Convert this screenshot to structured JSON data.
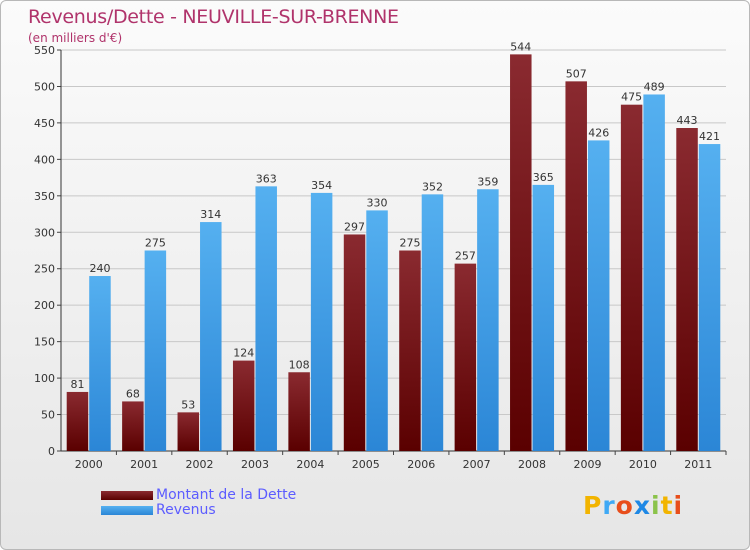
{
  "title": "Revenus/Dette - NEUVILLE-SUR-BRENNE",
  "subtitle": "(en milliers d'€)",
  "legend": {
    "debt_label": "Montant de la Dette",
    "revenue_label": "Revenus"
  },
  "logo": {
    "letters": [
      "P",
      "r",
      "o",
      "x",
      "i",
      "t",
      "i"
    ],
    "colors": [
      "#f2b400",
      "#3fa9f5",
      "#e84e1b",
      "#1e88e5",
      "#8bc34a",
      "#f2b400",
      "#e84e1b"
    ]
  },
  "colors": {
    "debt": "#7a1a20",
    "revenue": "#3f9fe6",
    "title": "#b0336b",
    "legend_text": "#5c5cff"
  },
  "chart_data": {
    "type": "bar",
    "title": "Revenus/Dette - NEUVILLE-SUR-BRENNE",
    "ylabel": "(en milliers d'€)",
    "xlabel": "",
    "ylim": [
      0,
      550
    ],
    "yticks": [
      0,
      50,
      100,
      150,
      200,
      250,
      300,
      350,
      400,
      450,
      500,
      550
    ],
    "categories": [
      "2000",
      "2001",
      "2002",
      "2003",
      "2004",
      "2005",
      "2006",
      "2007",
      "2008",
      "2009",
      "2010",
      "2011"
    ],
    "series": [
      {
        "name": "Montant de la Dette",
        "values": [
          81,
          68,
          53,
          124,
          108,
          297,
          275,
          257,
          544,
          507,
          475,
          443
        ]
      },
      {
        "name": "Revenus",
        "values": [
          240,
          275,
          314,
          363,
          354,
          330,
          352,
          359,
          365,
          426,
          489,
          421
        ]
      }
    ],
    "grid": true,
    "legend_position": "bottom-left"
  }
}
